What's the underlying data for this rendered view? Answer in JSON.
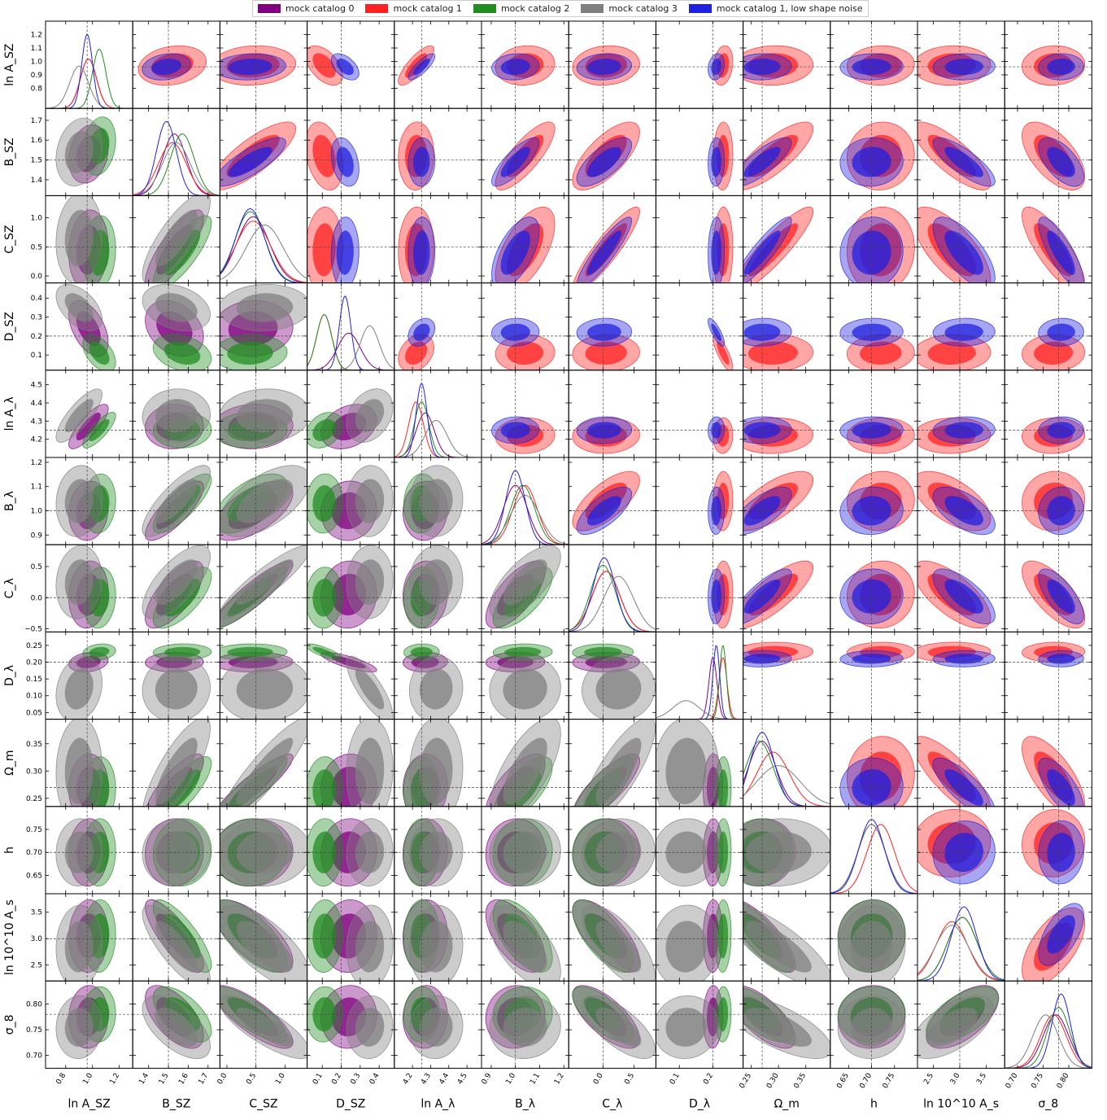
{
  "chart_data": {
    "type": "corner",
    "parameters": [
      {
        "id": "lnASZ",
        "label": "ln A_SZ",
        "range": [
          0.65,
          1.3
        ],
        "ticks": [
          0.8,
          1.0,
          1.2
        ],
        "tick_labels": [
          "0.8",
          "1.0",
          "1.2"
        ],
        "ytick_labels": [
          "0.8",
          "0.9",
          "1.0",
          "1.1",
          "1.2"
        ],
        "yticks": [
          0.8,
          0.9,
          1.0,
          1.1,
          1.2
        ],
        "truth": 0.96
      },
      {
        "id": "BSZ",
        "label": "B_SZ",
        "range": [
          1.32,
          1.76
        ],
        "ticks": [
          1.4,
          1.5,
          1.6,
          1.7
        ],
        "tick_labels": [
          "1.4",
          "1.5",
          "1.6",
          "1.7"
        ],
        "yticks": [
          1.4,
          1.5,
          1.6,
          1.7
        ],
        "ytick_labels": [
          "1.4",
          "1.5",
          "1.6",
          "1.7"
        ],
        "truth": 1.5
      },
      {
        "id": "CSZ",
        "label": "C_SZ",
        "range": [
          -0.12,
          1.38
        ],
        "ticks": [
          0.0,
          0.5,
          1.0
        ],
        "tick_labels": [
          "0.0",
          "0.5",
          "1.0"
        ],
        "yticks": [
          0.0,
          0.5,
          1.0
        ],
        "ytick_labels": [
          "0.0",
          "0.5",
          "1.0"
        ],
        "truth": 0.5
      },
      {
        "id": "DSZ",
        "label": "D_SZ",
        "range": [
          0.02,
          0.48
        ],
        "ticks": [
          0.1,
          0.2,
          0.3,
          0.4
        ],
        "tick_labels": [
          "0.1",
          "0.2",
          "0.3",
          "0.4"
        ],
        "yticks": [
          0.1,
          0.2,
          0.3,
          0.4
        ],
        "ytick_labels": [
          "0.1",
          "0.2",
          "0.3",
          "0.4"
        ],
        "truth": 0.2
      },
      {
        "id": "lnAl",
        "label": "ln A_λ",
        "range": [
          4.1,
          4.58
        ],
        "ticks": [
          4.2,
          4.3,
          4.4,
          4.5
        ],
        "tick_labels": [
          "4.2",
          "4.3",
          "4.4",
          "4.5"
        ],
        "yticks": [
          4.2,
          4.3,
          4.4,
          4.5
        ],
        "ytick_labels": [
          "4.2",
          "4.3",
          "4.4",
          "4.5"
        ],
        "truth": 4.25
      },
      {
        "id": "Bl",
        "label": "B_λ",
        "range": [
          0.86,
          1.22
        ],
        "ticks": [
          0.9,
          1.0,
          1.1,
          1.2
        ],
        "tick_labels": [
          "0.9",
          "1.0",
          "1.1",
          "1.2"
        ],
        "yticks": [
          0.9,
          1.0,
          1.1,
          1.2
        ],
        "ytick_labels": [
          "0.9",
          "1.0",
          "1.1",
          "1.2"
        ],
        "truth": 1.0
      },
      {
        "id": "Cl",
        "label": "C_λ",
        "range": [
          -0.55,
          0.85
        ],
        "ticks": [
          0.0,
          0.5
        ],
        "tick_labels": [
          "0.0",
          "0.5"
        ],
        "yticks": [
          -0.5,
          0.0,
          0.5
        ],
        "ytick_labels": [
          "−0.5",
          "0.0",
          "0.5"
        ],
        "truth": 0.0
      },
      {
        "id": "Dl",
        "label": "D_λ",
        "range": [
          0.03,
          0.29
        ],
        "ticks": [
          0.1,
          0.2
        ],
        "tick_labels": [
          "0.1",
          "0.2"
        ],
        "yticks": [
          0.05,
          0.1,
          0.15,
          0.2,
          0.25
        ],
        "ytick_labels": [
          "0.05",
          "0.10",
          "0.15",
          "0.20",
          "0.25"
        ],
        "truth": 0.2
      },
      {
        "id": "Om",
        "label": "Ω_m",
        "range": [
          0.235,
          0.395
        ],
        "ticks": [
          0.25,
          0.3,
          0.35
        ],
        "tick_labels": [
          "0.25",
          "0.30",
          "0.35"
        ],
        "yticks": [
          0.25,
          0.3,
          0.35
        ],
        "ytick_labels": [
          "0.25",
          "0.30",
          "0.35"
        ],
        "truth": 0.27
      },
      {
        "id": "h",
        "label": "h",
        "range": [
          0.61,
          0.8
        ],
        "ticks": [
          0.65,
          0.7,
          0.75
        ],
        "tick_labels": [
          "0.65",
          "0.70",
          "0.75"
        ],
        "yticks": [
          0.65,
          0.7,
          0.75
        ],
        "ytick_labels": [
          "0.65",
          "0.70",
          "0.75"
        ],
        "truth": 0.7
      },
      {
        "id": "lnAs",
        "label": "ln 10^10 A_s",
        "range": [
          2.2,
          3.85
        ],
        "ticks": [
          2.5,
          3.0,
          3.5
        ],
        "tick_labels": [
          "2.5",
          "3.0",
          "3.5"
        ],
        "yticks": [
          2.5,
          3.0,
          3.5
        ],
        "ytick_labels": [
          "2.5",
          "3.0",
          "3.5"
        ],
        "truth": 3.0
      },
      {
        "id": "s8",
        "label": "σ_8",
        "range": [
          0.675,
          0.845
        ],
        "ticks": [
          0.7,
          0.75,
          0.8
        ],
        "tick_labels": [
          "0.70",
          "0.75",
          "0.80"
        ],
        "yticks": [
          0.7,
          0.75,
          0.8
        ],
        "ytick_labels": [
          "0.70",
          "0.75",
          "0.80"
        ],
        "truth": 0.78
      }
    ],
    "series": [
      {
        "name": "mock catalog 0",
        "color": "#800080",
        "mean": [
          0.97,
          1.53,
          0.45,
          0.24,
          4.27,
          1.0,
          0.05,
          0.2,
          0.27,
          0.7,
          3.05,
          0.775
        ],
        "sd": [
          0.06,
          0.06,
          0.28,
          0.06,
          0.05,
          0.05,
          0.22,
          0.012,
          0.025,
          0.03,
          0.28,
          0.025
        ],
        "off": "lower"
      },
      {
        "name": "mock catalog 1",
        "color": "#ff2222",
        "mean": [
          0.97,
          1.52,
          0.45,
          0.11,
          4.22,
          1.04,
          0.05,
          0.23,
          0.29,
          0.72,
          2.85,
          0.77
        ],
        "sd": [
          0.06,
          0.07,
          0.3,
          0.04,
          0.04,
          0.05,
          0.22,
          0.012,
          0.03,
          0.03,
          0.3,
          0.025
        ],
        "off": "upper"
      },
      {
        "name": "mock catalog 2",
        "color": "#228b22",
        "mean": [
          1.05,
          1.57,
          0.4,
          0.11,
          4.25,
          1.03,
          0.0,
          0.23,
          0.265,
          0.7,
          3.05,
          0.78
        ],
        "sd": [
          0.05,
          0.06,
          0.26,
          0.04,
          0.04,
          0.05,
          0.2,
          0.01,
          0.025,
          0.03,
          0.28,
          0.022
        ],
        "off": "lower"
      },
      {
        "name": "mock catalog 3",
        "color": "#808080",
        "mean": [
          0.9,
          1.54,
          0.65,
          0.35,
          4.33,
          1.04,
          0.25,
          0.12,
          0.3,
          0.7,
          2.85,
          0.755
        ],
        "sd": [
          0.07,
          0.07,
          0.32,
          0.05,
          0.06,
          0.06,
          0.24,
          0.04,
          0.04,
          0.03,
          0.32,
          0.025
        ],
        "off": "lower"
      },
      {
        "name": "mock catalog 1, low shape noise",
        "color": "#2020e0",
        "mean": [
          0.96,
          1.49,
          0.4,
          0.22,
          4.25,
          1.0,
          0.02,
          0.21,
          0.27,
          0.7,
          3.08,
          0.785
        ],
        "sd": [
          0.04,
          0.05,
          0.25,
          0.03,
          0.03,
          0.04,
          0.18,
          0.01,
          0.022,
          0.028,
          0.24,
          0.018
        ],
        "off": "upper"
      }
    ],
    "lower_triangle_series": [
      "mock catalog 0",
      "mock catalog 2",
      "mock catalog 3"
    ],
    "upper_triangle_series": [
      "mock catalog 1",
      "mock catalog 1, low shape noise"
    ],
    "contours": "68% and 95% filled credible regions",
    "grid": false,
    "legend_position": "top-center"
  }
}
